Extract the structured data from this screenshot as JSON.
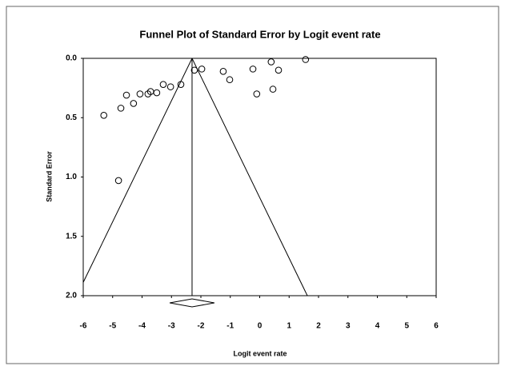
{
  "chart_data": {
    "type": "funnel",
    "title": "Funnel Plot of Standard Error by Logit event rate",
    "xlabel": "Logit event rate",
    "ylabel": "Standard Error",
    "x": [
      -5.3,
      -4.8,
      -4.72,
      -4.53,
      -4.29,
      -4.07,
      -3.8,
      -3.71,
      -3.5,
      -3.28,
      -3.03,
      -2.68,
      -2.22,
      -1.97,
      -1.24,
      -1.02,
      -0.23,
      -0.1,
      0.45,
      0.39,
      0.64,
      1.56
    ],
    "values": [
      0.48,
      1.03,
      0.42,
      0.31,
      0.38,
      0.3,
      0.3,
      0.28,
      0.29,
      0.22,
      0.24,
      0.22,
      0.1,
      0.09,
      0.11,
      0.18,
      0.09,
      0.3,
      0.26,
      0.03,
      0.1,
      0.01
    ],
    "pooled_estimate": -2.3,
    "funnel": {
      "x": [
        -6.22,
        -2.3,
        1.62
      ],
      "y": [
        2,
        0,
        2
      ]
    },
    "diamond": {
      "center": -2.3,
      "lower": -3.06,
      "upper": -1.54
    },
    "xlim": [
      -6,
      6
    ],
    "xticks": [
      -6,
      -5,
      -4,
      -3,
      -2,
      -1,
      0,
      1,
      2,
      3,
      4,
      5,
      6
    ],
    "ylim": [
      0,
      2
    ],
    "y_inverted": true,
    "yticks": [
      {
        "value": 0,
        "label": "0.0"
      },
      {
        "value": 0.5,
        "label": "0.5"
      },
      {
        "value": 1,
        "label": "1.0"
      },
      {
        "value": 1.5,
        "label": "1.5"
      },
      {
        "value": 2,
        "label": "2.0"
      }
    ],
    "marker_color": "#000000",
    "grid": false
  }
}
